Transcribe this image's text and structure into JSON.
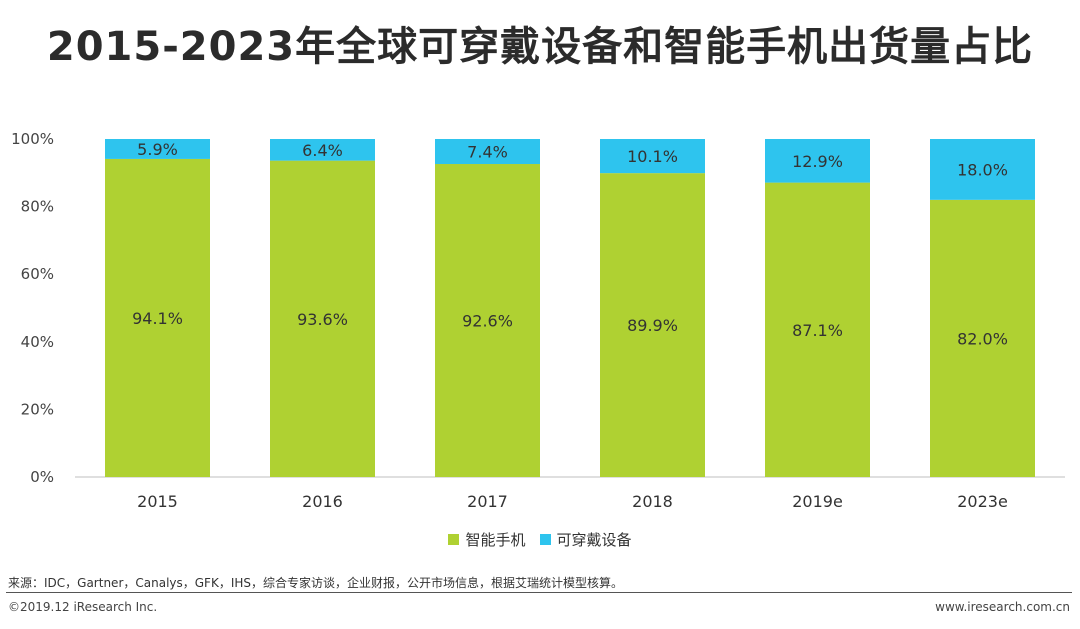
{
  "title": "2015-2023年全球可穿戴设备和智能手机出货量占比",
  "chart_data": {
    "type": "bar",
    "stacked": true,
    "categories": [
      "2015",
      "2016",
      "2017",
      "2018",
      "2019e",
      "2023e"
    ],
    "series": [
      {
        "name": "智能手机",
        "color": "#afd132",
        "values": [
          94.1,
          93.6,
          92.6,
          89.9,
          87.1,
          82.0
        ],
        "labels": [
          "94.1%",
          "93.6%",
          "92.6%",
          "89.9%",
          "87.1%",
          "82.0%"
        ]
      },
      {
        "name": "可穿戴设备",
        "color": "#2ec4ee",
        "values": [
          5.9,
          6.4,
          7.4,
          10.1,
          12.9,
          18.0
        ],
        "labels": [
          "5.9%",
          "6.4%",
          "7.4%",
          "10.1%",
          "12.9%",
          "18.0%"
        ]
      }
    ],
    "ylim": [
      0,
      100
    ],
    "yticks": [
      "0%",
      "20%",
      "40%",
      "60%",
      "80%",
      "100%"
    ],
    "legend_position": "bottom"
  },
  "source": "来源：IDC，Gartner，Canalys，GFK，IHS，综合专家访谈，企业财报，公开市场信息，根据艾瑞统计模型核算。",
  "footer": {
    "copyright": "©2019.12 iResearch Inc.",
    "website": "www.iresearch.com.cn"
  }
}
